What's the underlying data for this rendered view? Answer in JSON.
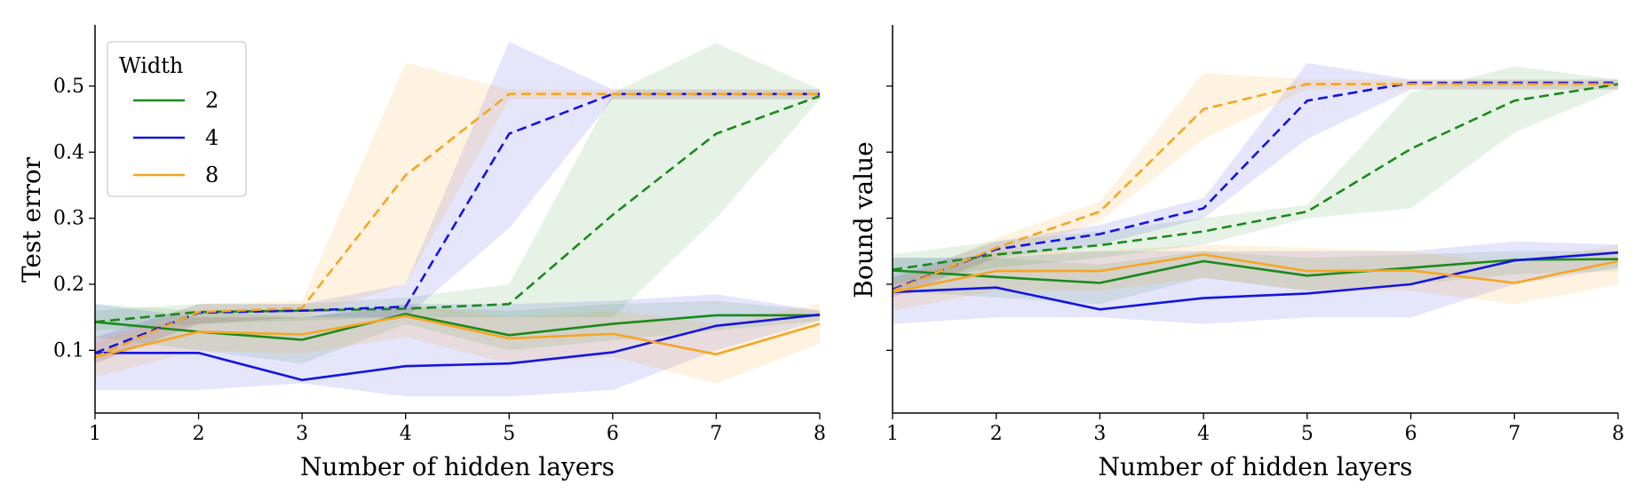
{
  "chart_data": [
    {
      "type": "line",
      "xlabel": "Number of hidden layers",
      "ylabel": "Test error",
      "xlim": [
        1,
        8
      ],
      "ylim": [
        0.005,
        0.59
      ],
      "xticks": [
        "1",
        "2",
        "3",
        "4",
        "5",
        "6",
        "7",
        "8"
      ],
      "yticks": [
        "0.1",
        "0.2",
        "0.3",
        "0.4",
        "0.5"
      ],
      "legend": {
        "title": "Width",
        "position": "top-left",
        "entries": [
          "2",
          "4",
          "8"
        ]
      },
      "x": [
        1,
        2,
        3,
        4,
        5,
        6,
        7,
        8
      ],
      "series": [
        {
          "name": "2",
          "style": "solid",
          "color": "#1a8a1a",
          "values": [
            0.143,
            0.128,
            0.116,
            0.155,
            0.123,
            0.14,
            0.153,
            0.153
          ],
          "lower": [
            0.12,
            0.1,
            0.08,
            0.14,
            0.1,
            0.115,
            0.13,
            0.145
          ],
          "upper": [
            0.17,
            0.16,
            0.15,
            0.165,
            0.16,
            0.17,
            0.175,
            0.16
          ]
        },
        {
          "name": "4",
          "style": "solid",
          "color": "#1414e0",
          "values": [
            0.096,
            0.096,
            0.055,
            0.076,
            0.08,
            0.097,
            0.137,
            0.154
          ],
          "lower": [
            0.04,
            0.04,
            0.05,
            0.03,
            0.03,
            0.04,
            0.1,
            0.145
          ],
          "upper": [
            0.17,
            0.15,
            0.15,
            0.17,
            0.17,
            0.175,
            0.185,
            0.16
          ]
        },
        {
          "name": "8",
          "style": "solid",
          "color": "#f5a623",
          "values": [
            0.09,
            0.128,
            0.124,
            0.152,
            0.118,
            0.125,
            0.094,
            0.14
          ],
          "lower": [
            0.06,
            0.1,
            0.095,
            0.12,
            0.08,
            0.09,
            0.05,
            0.11
          ],
          "upper": [
            0.12,
            0.15,
            0.15,
            0.17,
            0.15,
            0.16,
            0.14,
            0.17
          ]
        },
        {
          "name": "2",
          "style": "dashed",
          "color": "#1a8a1a",
          "values": [
            0.143,
            0.158,
            0.16,
            0.163,
            0.17,
            0.305,
            0.428,
            0.485
          ],
          "lower": [
            0.13,
            0.14,
            0.145,
            0.15,
            0.15,
            0.15,
            0.3,
            0.48
          ],
          "upper": [
            0.16,
            0.17,
            0.17,
            0.18,
            0.2,
            0.49,
            0.565,
            0.495
          ]
        },
        {
          "name": "4",
          "style": "dashed",
          "color": "#1414e0",
          "values": [
            0.096,
            0.157,
            0.16,
            0.166,
            0.428,
            0.488,
            0.488,
            0.488
          ],
          "lower": [
            0.08,
            0.14,
            0.15,
            0.15,
            0.285,
            0.48,
            0.48,
            0.48
          ],
          "upper": [
            0.12,
            0.17,
            0.17,
            0.2,
            0.567,
            0.495,
            0.495,
            0.495
          ]
        },
        {
          "name": "8",
          "style": "dashed",
          "color": "#f5a623",
          "values": [
            0.09,
            0.158,
            0.164,
            0.365,
            0.488,
            0.488,
            0.488,
            0.488
          ],
          "lower": [
            0.08,
            0.14,
            0.15,
            0.2,
            0.48,
            0.48,
            0.48,
            0.48
          ],
          "upper": [
            0.11,
            0.17,
            0.175,
            0.535,
            0.495,
            0.495,
            0.495,
            0.495
          ]
        }
      ]
    },
    {
      "type": "line",
      "xlabel": "Number of hidden layers",
      "ylabel": "Bound value",
      "xlim": [
        1,
        8
      ],
      "ylim": [
        0.005,
        0.59
      ],
      "xticks": [
        "1",
        "2",
        "3",
        "4",
        "5",
        "6",
        "7",
        "8"
      ],
      "yticks": [],
      "x": [
        1,
        2,
        3,
        4,
        5,
        6,
        7,
        8
      ],
      "series": [
        {
          "name": "2",
          "style": "solid",
          "color": "#1a8a1a",
          "values": [
            0.221,
            0.211,
            0.202,
            0.235,
            0.213,
            0.225,
            0.237,
            0.238
          ],
          "lower": [
            0.19,
            0.18,
            0.17,
            0.21,
            0.19,
            0.2,
            0.215,
            0.22
          ],
          "upper": [
            0.24,
            0.24,
            0.23,
            0.25,
            0.24,
            0.245,
            0.25,
            0.25
          ]
        },
        {
          "name": "4",
          "style": "solid",
          "color": "#1414e0",
          "values": [
            0.188,
            0.195,
            0.162,
            0.179,
            0.186,
            0.2,
            0.236,
            0.248
          ],
          "lower": [
            0.14,
            0.15,
            0.15,
            0.14,
            0.15,
            0.15,
            0.2,
            0.225
          ],
          "upper": [
            0.24,
            0.24,
            0.25,
            0.25,
            0.25,
            0.25,
            0.265,
            0.26
          ]
        },
        {
          "name": "8",
          "style": "solid",
          "color": "#f5a623",
          "values": [
            0.188,
            0.22,
            0.22,
            0.245,
            0.22,
            0.221,
            0.202,
            0.235
          ],
          "lower": [
            0.16,
            0.19,
            0.19,
            0.21,
            0.19,
            0.19,
            0.17,
            0.2
          ],
          "upper": [
            0.21,
            0.25,
            0.25,
            0.26,
            0.255,
            0.25,
            0.23,
            0.26
          ]
        },
        {
          "name": "2",
          "style": "dashed",
          "color": "#1a8a1a",
          "values": [
            0.222,
            0.245,
            0.259,
            0.28,
            0.31,
            0.405,
            0.478,
            0.503
          ],
          "lower": [
            0.2,
            0.225,
            0.24,
            0.26,
            0.3,
            0.315,
            0.43,
            0.495
          ],
          "upper": [
            0.245,
            0.265,
            0.28,
            0.3,
            0.32,
            0.49,
            0.53,
            0.51
          ]
        },
        {
          "name": "4",
          "style": "dashed",
          "color": "#1414e0",
          "values": [
            0.192,
            0.253,
            0.276,
            0.315,
            0.478,
            0.505,
            0.505,
            0.505
          ],
          "lower": [
            0.18,
            0.24,
            0.26,
            0.3,
            0.42,
            0.495,
            0.495,
            0.495
          ],
          "upper": [
            0.21,
            0.265,
            0.29,
            0.33,
            0.535,
            0.51,
            0.51,
            0.51
          ]
        },
        {
          "name": "8",
          "style": "dashed",
          "color": "#f5a623",
          "values": [
            0.19,
            0.255,
            0.31,
            0.465,
            0.503,
            0.503,
            0.503,
            0.503
          ],
          "lower": [
            0.18,
            0.24,
            0.295,
            0.42,
            0.495,
            0.495,
            0.495,
            0.495
          ],
          "upper": [
            0.2,
            0.27,
            0.325,
            0.52,
            0.51,
            0.51,
            0.51,
            0.51
          ]
        }
      ]
    }
  ]
}
